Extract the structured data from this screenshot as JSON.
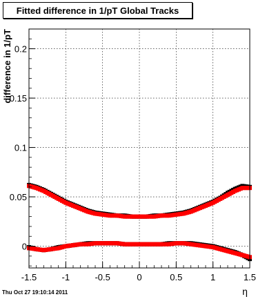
{
  "chart_data": {
    "type": "scatter",
    "title": "Fitted difference in 1/pT  Global Tracks",
    "xlabel": "η",
    "ylabel": "difference in 1/pT",
    "xlim": [
      -1.5,
      1.5
    ],
    "ylim": [
      -0.022,
      0.22
    ],
    "xticks": [
      "-1.5",
      "-1",
      "-0.5",
      "0",
      "0.5",
      "1",
      "1.5"
    ],
    "xtick_values": [
      -1.5,
      -1,
      -0.5,
      0,
      0.5,
      1,
      1.5
    ],
    "yticks": [
      "0",
      "0.05",
      "0.1",
      "0.15",
      "0.2"
    ],
    "ytick_values": [
      0,
      0.05,
      0.1,
      0.15,
      0.2
    ],
    "grid": true,
    "series": [
      {
        "color": "#000000",
        "x": [
          -1.5,
          -1.4,
          -1.3,
          -1.2,
          -1.1,
          -1.0,
          -0.9,
          -0.8,
          -0.7,
          -0.6,
          -0.5,
          -0.4,
          -0.3,
          -0.2,
          -0.1,
          0.0,
          0.1,
          0.2,
          0.3,
          0.4,
          0.5,
          0.6,
          0.7,
          0.8,
          0.9,
          1.0,
          1.1,
          1.2,
          1.3,
          1.4,
          1.5
        ],
        "y": [
          0.062,
          0.06,
          0.057,
          0.053,
          0.049,
          0.045,
          0.042,
          0.039,
          0.036,
          0.034,
          0.033,
          0.032,
          0.031,
          0.031,
          0.03,
          0.03,
          0.03,
          0.031,
          0.031,
          0.032,
          0.033,
          0.034,
          0.036,
          0.039,
          0.042,
          0.045,
          0.049,
          0.054,
          0.058,
          0.061,
          0.06
        ]
      },
      {
        "color": "#ff0000",
        "x": [
          -1.5,
          -1.4,
          -1.3,
          -1.2,
          -1.1,
          -1.0,
          -0.9,
          -0.8,
          -0.7,
          -0.6,
          -0.5,
          -0.4,
          -0.3,
          -0.2,
          -0.1,
          0.0,
          0.1,
          0.2,
          0.3,
          0.4,
          0.5,
          0.6,
          0.7,
          0.8,
          0.9,
          1.0,
          1.1,
          1.2,
          1.3,
          1.4,
          1.5
        ],
        "y": [
          0.061,
          0.059,
          0.056,
          0.052,
          0.048,
          0.044,
          0.041,
          0.038,
          0.035,
          0.033,
          0.032,
          0.031,
          0.031,
          0.03,
          0.03,
          0.03,
          0.03,
          0.03,
          0.031,
          0.031,
          0.032,
          0.033,
          0.035,
          0.038,
          0.041,
          0.044,
          0.048,
          0.052,
          0.056,
          0.059,
          0.059
        ]
      },
      {
        "color": "#000000",
        "x": [
          -1.5,
          -1.4,
          -1.3,
          -1.2,
          -1.1,
          -1.0,
          -0.9,
          -0.8,
          -0.7,
          -0.6,
          -0.5,
          -0.4,
          -0.3,
          -0.2,
          -0.1,
          0.0,
          0.1,
          0.2,
          0.3,
          0.4,
          0.5,
          0.6,
          0.7,
          0.8,
          0.9,
          1.0,
          1.1,
          1.2,
          1.3,
          1.4,
          1.5
        ],
        "y": [
          -0.001,
          -0.003,
          -0.004,
          -0.003,
          -0.001,
          0.0,
          0.001,
          0.002,
          0.003,
          0.003,
          0.003,
          0.003,
          0.003,
          0.002,
          0.002,
          0.002,
          0.002,
          0.002,
          0.002,
          0.003,
          0.003,
          0.003,
          0.003,
          0.002,
          0.001,
          0.0,
          -0.002,
          -0.004,
          -0.006,
          -0.009,
          -0.013
        ]
      },
      {
        "color": "#ff0000",
        "x": [
          -1.5,
          -1.4,
          -1.3,
          -1.2,
          -1.1,
          -1.0,
          -0.9,
          -0.8,
          -0.7,
          -0.6,
          -0.5,
          -0.4,
          -0.3,
          -0.2,
          -0.1,
          0.0,
          0.1,
          0.2,
          0.3,
          0.4,
          0.5,
          0.6,
          0.7,
          0.8,
          0.9,
          1.0,
          1.1,
          1.2,
          1.3,
          1.4,
          1.5
        ],
        "y": [
          -0.002,
          -0.003,
          -0.004,
          -0.003,
          -0.002,
          0.0,
          0.001,
          0.002,
          0.002,
          0.003,
          0.003,
          0.003,
          0.003,
          0.002,
          0.002,
          0.002,
          0.002,
          0.002,
          0.002,
          0.002,
          0.003,
          0.003,
          0.002,
          0.001,
          0.0,
          -0.001,
          -0.003,
          -0.005,
          -0.007,
          -0.009,
          -0.011
        ]
      }
    ]
  },
  "footer": {
    "timestamp": "Thu Oct 27 19:10:14 2011"
  }
}
